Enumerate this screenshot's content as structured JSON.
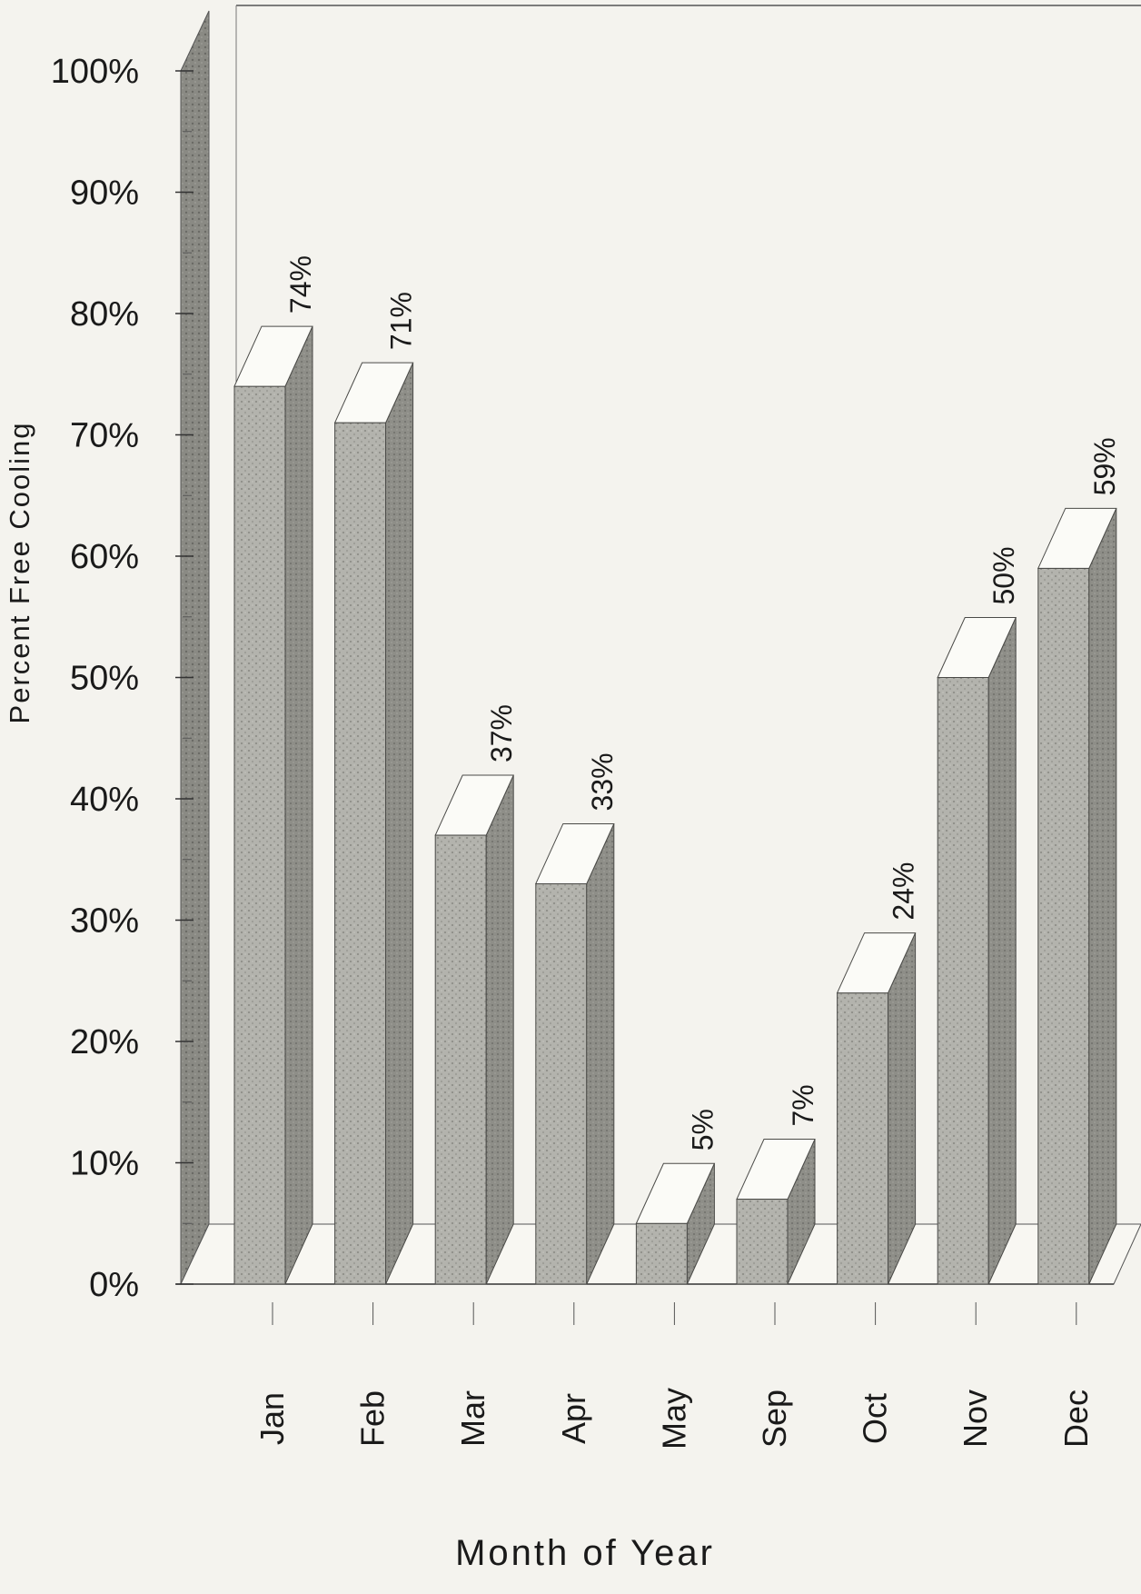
{
  "chart_data": {
    "type": "bar",
    "title": "",
    "ylabel": "Percent Free Cooling",
    "xlabel": "Month of Year",
    "categories": [
      "Jan",
      "Feb",
      "Mar",
      "Apr",
      "May",
      "Sep",
      "Oct",
      "Nov",
      "Dec"
    ],
    "values": [
      74,
      71,
      37,
      33,
      5,
      7,
      24,
      50,
      59
    ],
    "data_labels": [
      "74%",
      "71%",
      "37%",
      "33%",
      "5%",
      "7%",
      "24%",
      "50%",
      "59%"
    ],
    "y_ticks": [
      "0%",
      "10%",
      "20%",
      "30%",
      "40%",
      "50%",
      "60%",
      "70%",
      "80%",
      "90%",
      "100%"
    ],
    "ylim": [
      0,
      100
    ],
    "grid": false,
    "legend": "none",
    "style": "3d",
    "colors": {
      "background": "#f4f3ee",
      "bar_front": "#b3b3ad",
      "bar_side": "#8e8e88",
      "bar_top": "#fbfbf7",
      "back_wall": "#8a8a84",
      "axis": "#333333"
    }
  }
}
